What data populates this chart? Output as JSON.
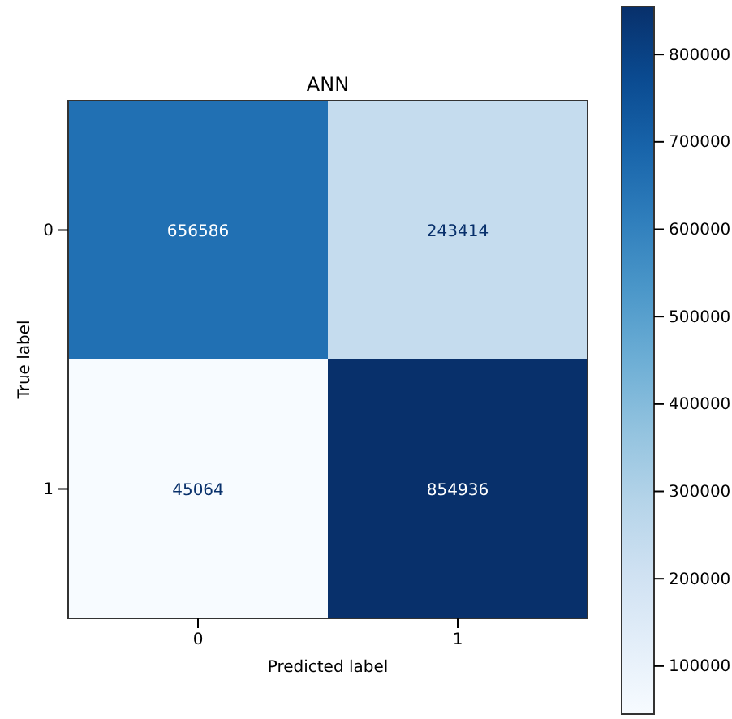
{
  "chart_data": {
    "type": "heatmap",
    "title": "ANN",
    "xlabel": "Predicted label",
    "ylabel": "True label",
    "categories": [
      "0",
      "1"
    ],
    "y_categories": [
      "0",
      "1"
    ],
    "cells": [
      [
        656586,
        243414
      ],
      [
        45064,
        854936
      ]
    ],
    "clim": [
      45064,
      854936
    ],
    "data_labels": true,
    "cticks": [
      100000,
      200000,
      300000,
      400000,
      500000,
      600000,
      700000,
      800000
    ]
  }
}
